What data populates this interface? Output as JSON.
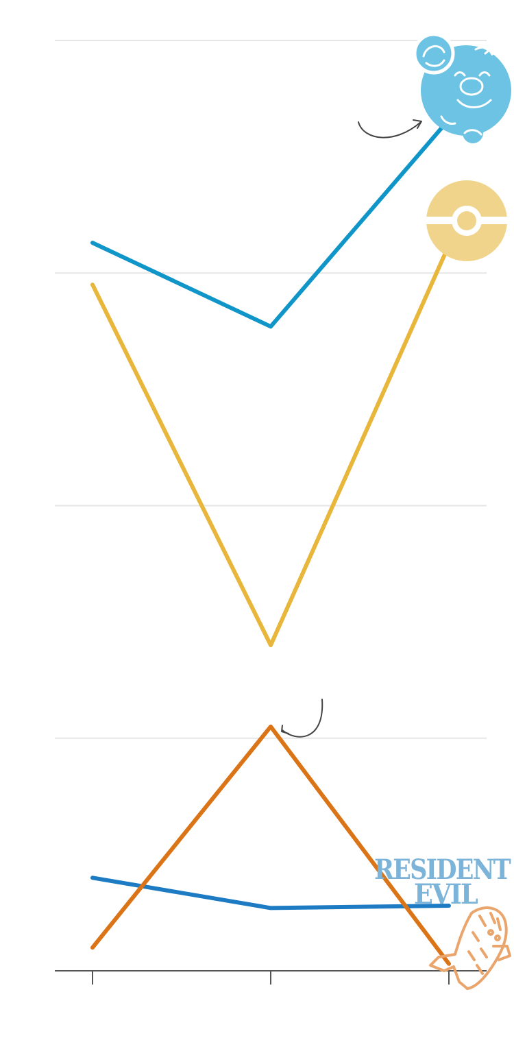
{
  "chart_data": {
    "type": "line",
    "title": "",
    "xlabel": "",
    "ylabel": "",
    "categories": [
      "",
      "",
      ""
    ],
    "ylim": [
      0,
      4
    ],
    "grid": true,
    "series": [
      {
        "color": "#0f95c7",
        "icon": "mario-icon",
        "values": [
          3.13,
          2.77,
          3.66
        ]
      },
      {
        "color": "#e8b63a",
        "icon": "pokeball-icon",
        "values": [
          2.95,
          1.4,
          3.12
        ]
      },
      {
        "color": "#1d7bc4",
        "icon": "resident-evil-logo",
        "values": [
          0.4,
          0.27,
          0.28
        ]
      },
      {
        "color": "#da7417",
        "icon": "cactuar-icon",
        "values": [
          0.1,
          1.05,
          0.03
        ]
      }
    ],
    "annotations": [
      {
        "type": "arrow",
        "target_series": 0,
        "target_point": 2
      },
      {
        "type": "arrow",
        "target_series": 3,
        "target_point": 1
      }
    ]
  },
  "icons": {
    "mario_color": "#6cc3e3",
    "pokeball_color": "#f0d48c",
    "resident_evil_color": "#7bb3d9",
    "cactuar_color": "#eaa56c",
    "resident_evil_logo_text": [
      "RESIDENT",
      "EVIL"
    ]
  }
}
